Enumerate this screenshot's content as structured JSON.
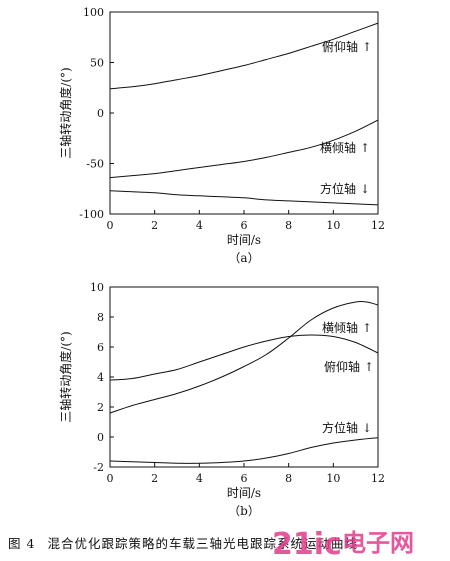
{
  "chart_data": [
    {
      "type": "line",
      "panel_label": "（a）",
      "xlabel": "时间/s",
      "ylabel": "三轴转动角度/(°)",
      "xlim": [
        0,
        12
      ],
      "ylim": [
        -100,
        100
      ],
      "xticks": [
        "0",
        "2",
        "4",
        "6",
        "8",
        "10",
        "12"
      ],
      "yticks": [
        "100",
        "50",
        "0",
        "-50",
        "-100"
      ],
      "grid": false,
      "series": [
        {
          "name": "俯仰轴",
          "arrow": "↑",
          "x": [
            0,
            1,
            2,
            3,
            4,
            5,
            6,
            7,
            8,
            9,
            10,
            11,
            12
          ],
          "y": [
            24,
            26,
            29,
            33,
            37,
            42,
            47,
            53,
            59,
            66,
            73,
            81,
            89
          ]
        },
        {
          "name": "横倾轴",
          "arrow": "↑",
          "x": [
            0,
            1,
            2,
            3,
            4,
            5,
            6,
            7,
            8,
            9,
            10,
            11,
            12
          ],
          "y": [
            -64,
            -62,
            -60,
            -57,
            -54,
            -51,
            -48,
            -44,
            -39,
            -34,
            -27,
            -18,
            -7
          ]
        },
        {
          "name": "方位轴",
          "arrow": "↓",
          "x": [
            0,
            1,
            2,
            3,
            4,
            5,
            6,
            7,
            8,
            9,
            10,
            11,
            12
          ],
          "y": [
            -77,
            -78,
            -79,
            -81,
            -82,
            -83,
            -84,
            -86,
            -87,
            -88,
            -89,
            -90,
            -91
          ]
        }
      ]
    },
    {
      "type": "line",
      "panel_label": "（b）",
      "xlabel": "时间/s",
      "ylabel": "三轴转动角度/(°)",
      "xlim": [
        0,
        12
      ],
      "ylim": [
        -2,
        10
      ],
      "xticks": [
        "0",
        "2",
        "4",
        "6",
        "8",
        "10",
        "12"
      ],
      "yticks": [
        "10",
        "8",
        "6",
        "4",
        "2",
        "0",
        "-2"
      ],
      "grid": false,
      "series": [
        {
          "name": "横倾轴",
          "arrow": "↑",
          "x": [
            0,
            1,
            2,
            3,
            4,
            5,
            6,
            7,
            8,
            9,
            10,
            11,
            11.5,
            12
          ],
          "y": [
            1.6,
            2.1,
            2.5,
            2.9,
            3.4,
            4.0,
            4.7,
            5.5,
            6.6,
            7.8,
            8.6,
            9.0,
            9.0,
            8.8
          ]
        },
        {
          "name": "俯仰轴",
          "arrow": "↑",
          "x": [
            0,
            1,
            2,
            3,
            4,
            5,
            6,
            7,
            8,
            9,
            10,
            11,
            12
          ],
          "y": [
            3.8,
            3.9,
            4.2,
            4.5,
            5.0,
            5.5,
            6.0,
            6.4,
            6.7,
            6.8,
            6.7,
            6.3,
            5.6
          ]
        },
        {
          "name": "方位轴",
          "arrow": "↓",
          "x": [
            0,
            1,
            2,
            3,
            4,
            5,
            6,
            7,
            8,
            9,
            10,
            11,
            12
          ],
          "y": [
            -1.6,
            -1.65,
            -1.7,
            -1.75,
            -1.75,
            -1.7,
            -1.6,
            -1.4,
            -1.1,
            -0.7,
            -0.4,
            -0.2,
            -0.05
          ]
        }
      ]
    }
  ],
  "caption": {
    "fig_no": "图 4",
    "text": "混合优化跟踪策略的车载三轴光电跟踪系统运动曲线"
  },
  "watermark": {
    "part1": "21ic",
    "part2": "电子网",
    "color1": "#e23b8a",
    "color2": "#e23b8a"
  },
  "colors": {
    "ink": "#111111",
    "background": "#ffffff"
  }
}
